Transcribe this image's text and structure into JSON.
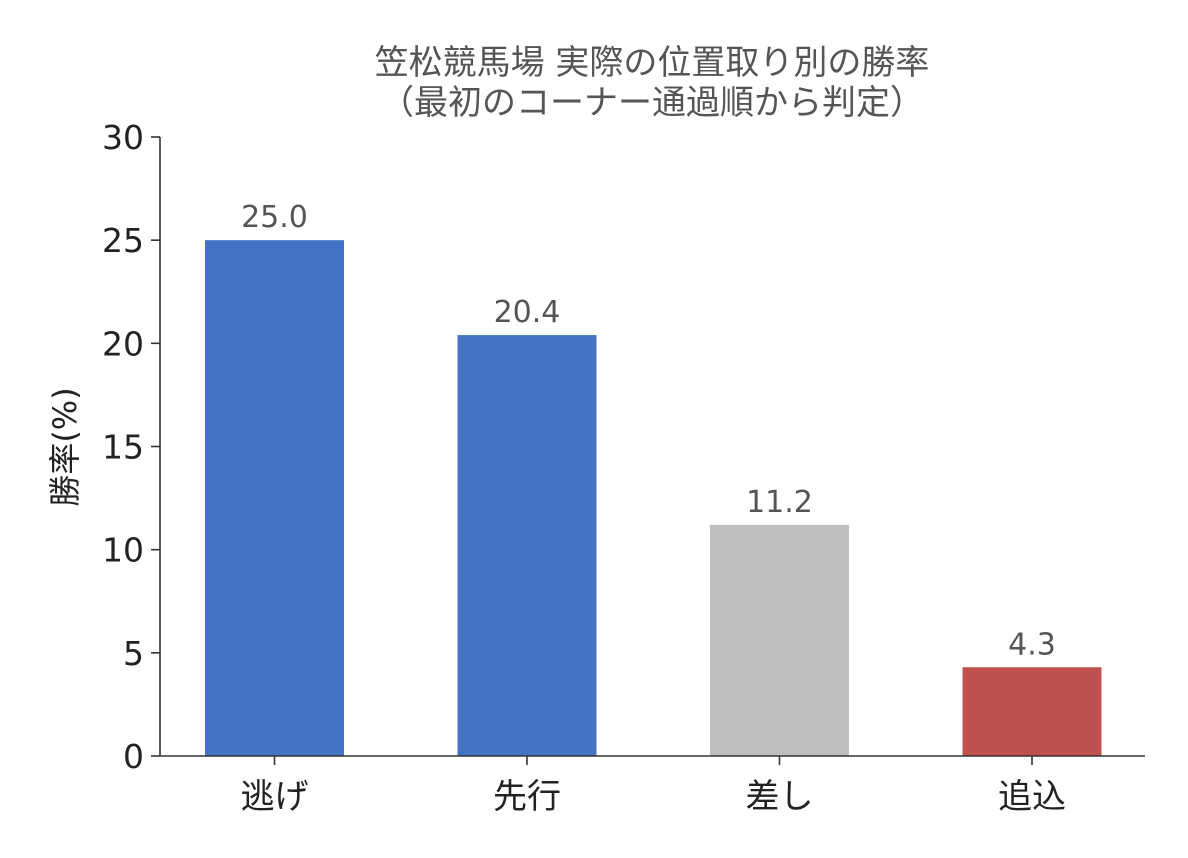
{
  "chart_data": {
    "type": "bar",
    "title_line1": "笠松競馬場 実際の位置取り別の勝率",
    "title_line2": "（最初のコーナー通過順から判定）",
    "xlabel": "",
    "ylabel": "勝率(%)",
    "ylim": [
      0,
      30
    ],
    "yticks": [
      0,
      5,
      10,
      15,
      20,
      25,
      30
    ],
    "categories": [
      "逃げ",
      "先行",
      "差し",
      "追込"
    ],
    "values": [
      25.0,
      20.4,
      11.2,
      4.3
    ],
    "value_labels": [
      "25.0",
      "20.4",
      "11.2",
      "4.3"
    ],
    "colors": [
      "#4472c4",
      "#4472c4",
      "#bfbfbf",
      "#c0504d"
    ],
    "grid": false,
    "legend": "none"
  }
}
